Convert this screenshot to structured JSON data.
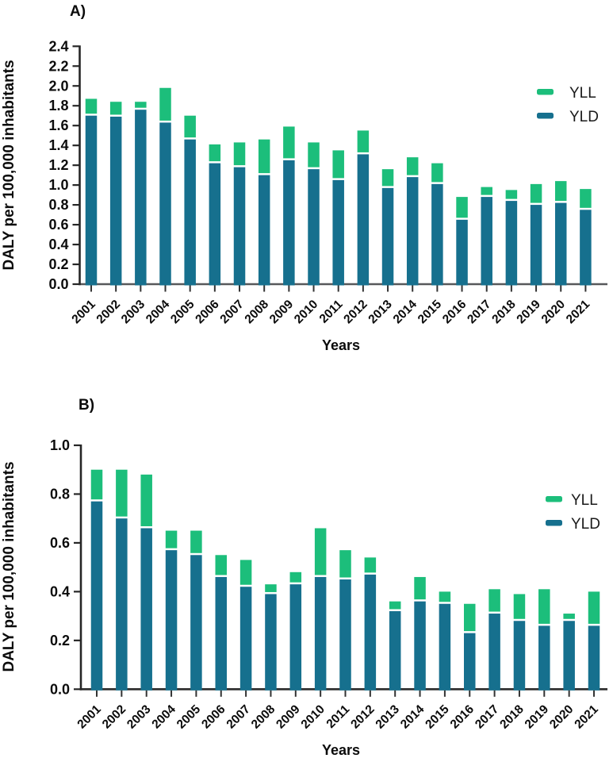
{
  "figure_title": "",
  "colors": {
    "yll_green": "#1CBE7B",
    "yld_teal": "#16708E",
    "axis_dark": "#262626",
    "axis_gray": "#57585A",
    "background": "#FFFFFF",
    "text": "#0B0B0B"
  },
  "legend": {
    "entries": [
      {
        "name": "YLL"
      },
      {
        "name": "YLD"
      }
    ]
  },
  "chart_data": [
    {
      "type": "bar",
      "stacked": true,
      "panel_label": "A)",
      "xlabel": "Years",
      "ylabel": "DALY  per 100,000 inhabitants",
      "ylim": [
        0,
        2.4
      ],
      "ytick_step": 0.2,
      "ytick_decimals": 1,
      "grid": false,
      "legend_position": "top-right",
      "legend_entries": [
        "YLL",
        "YLD"
      ],
      "categories": [
        "2001",
        "2002",
        "2003",
        "2004",
        "2005",
        "2006",
        "2007",
        "2008",
        "2009",
        "2010",
        "2011",
        "2012",
        "2013",
        "2014",
        "2015",
        "2016",
        "2017",
        "2018",
        "2019",
        "2020",
        "2021"
      ],
      "series": [
        {
          "name": "YLD",
          "color": "#16708E",
          "values": [
            1.7,
            1.69,
            1.76,
            1.63,
            1.46,
            1.22,
            1.18,
            1.1,
            1.25,
            1.16,
            1.05,
            1.31,
            0.97,
            1.08,
            1.01,
            0.65,
            0.88,
            0.84,
            0.8,
            0.82,
            0.75
          ]
        },
        {
          "name": "YLL",
          "color": "#1CBE7B",
          "values": [
            0.17,
            0.15,
            0.08,
            0.35,
            0.24,
            0.19,
            0.25,
            0.36,
            0.34,
            0.27,
            0.3,
            0.24,
            0.19,
            0.2,
            0.21,
            0.23,
            0.1,
            0.11,
            0.21,
            0.22,
            0.21
          ]
        }
      ]
    },
    {
      "type": "bar",
      "stacked": true,
      "panel_label": "B)",
      "xlabel": "Years",
      "ylabel": "DALY  per 100,000 inhabitants",
      "ylim": [
        0,
        1.0
      ],
      "ytick_step": 0.2,
      "ytick_decimals": 1,
      "grid": false,
      "legend_position": "top-right",
      "legend_entries": [
        "YLL",
        "YLD"
      ],
      "categories": [
        "2001",
        "2002",
        "2003",
        "2004",
        "2005",
        "2006",
        "2007",
        "2008",
        "2009",
        "2010",
        "2011",
        "2012",
        "2013",
        "2014",
        "2015",
        "2016",
        "2017",
        "2018",
        "2019",
        "2020",
        "2021"
      ],
      "series": [
        {
          "name": "YLD",
          "color": "#16708E",
          "values": [
            0.77,
            0.7,
            0.66,
            0.57,
            0.55,
            0.46,
            0.42,
            0.39,
            0.43,
            0.46,
            0.45,
            0.47,
            0.32,
            0.36,
            0.35,
            0.23,
            0.31,
            0.28,
            0.26,
            0.28,
            0.26
          ]
        },
        {
          "name": "YLL",
          "color": "#1CBE7B",
          "values": [
            0.13,
            0.2,
            0.22,
            0.08,
            0.1,
            0.09,
            0.11,
            0.04,
            0.05,
            0.2,
            0.12,
            0.07,
            0.04,
            0.1,
            0.05,
            0.12,
            0.1,
            0.11,
            0.15,
            0.03,
            0.14
          ]
        }
      ]
    }
  ]
}
